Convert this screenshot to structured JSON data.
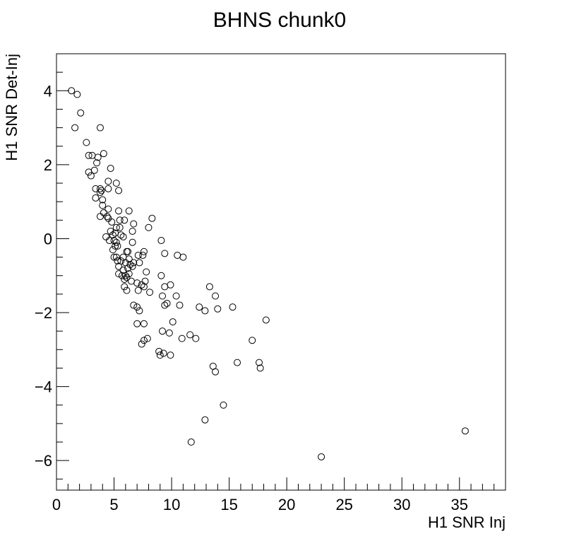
{
  "chart_data": {
    "type": "scatter",
    "title": "BHNS chunk0",
    "xlabel": "H1 SNR Inj",
    "ylabel": "H1 SNR Det-Inj",
    "xlim": [
      0,
      39
    ],
    "ylim": [
      -6.8,
      5.0
    ],
    "x_ticks": [
      0,
      5,
      10,
      15,
      20,
      25,
      30,
      35
    ],
    "y_ticks": [
      -6,
      -4,
      -2,
      0,
      2,
      4
    ],
    "x_tick_labels": [
      "0",
      "5",
      "10",
      "15",
      "20",
      "25",
      "30",
      "35"
    ],
    "y_tick_labels": [
      "−6",
      "−4",
      "−2",
      "0",
      "2",
      "4"
    ],
    "grid": false,
    "marker": "open-circle",
    "colors": {
      "marker": "#000000",
      "axis": "#000000",
      "background": "#ffffff"
    },
    "points": [
      [
        1.3,
        4.0
      ],
      [
        1.8,
        3.9
      ],
      [
        2.1,
        3.4
      ],
      [
        1.6,
        3.0
      ],
      [
        3.8,
        3.0
      ],
      [
        2.6,
        2.6
      ],
      [
        2.8,
        2.25
      ],
      [
        3.1,
        2.25
      ],
      [
        3.6,
        2.2
      ],
      [
        4.1,
        2.3
      ],
      [
        3.5,
        2.05
      ],
      [
        4.7,
        1.9
      ],
      [
        2.8,
        1.8
      ],
      [
        3.3,
        1.85
      ],
      [
        3.0,
        1.7
      ],
      [
        4.5,
        1.55
      ],
      [
        5.2,
        1.5
      ],
      [
        3.8,
        1.35
      ],
      [
        3.4,
        1.35
      ],
      [
        3.9,
        1.3
      ],
      [
        4.5,
        1.35
      ],
      [
        5.4,
        1.3
      ],
      [
        3.8,
        1.25
      ],
      [
        3.4,
        1.1
      ],
      [
        4.0,
        1.05
      ],
      [
        4.0,
        0.9
      ],
      [
        4.5,
        0.8
      ],
      [
        4.1,
        0.7
      ],
      [
        3.8,
        0.6
      ],
      [
        4.4,
        0.6
      ],
      [
        5.4,
        0.75
      ],
      [
        6.3,
        0.75
      ],
      [
        4.5,
        0.55
      ],
      [
        5.5,
        0.5
      ],
      [
        5.9,
        0.5
      ],
      [
        8.3,
        0.55
      ],
      [
        4.8,
        0.45
      ],
      [
        6.7,
        0.4
      ],
      [
        5.2,
        0.3
      ],
      [
        5.5,
        0.3
      ],
      [
        8.0,
        0.3
      ],
      [
        4.7,
        0.2
      ],
      [
        5.1,
        0.15
      ],
      [
        6.6,
        0.2
      ],
      [
        4.3,
        0.05
      ],
      [
        4.9,
        0.1
      ],
      [
        5.6,
        0.1
      ],
      [
        5.8,
        0.05
      ],
      [
        4.6,
        -0.05
      ],
      [
        5.0,
        -0.05
      ],
      [
        5.2,
        -0.1
      ],
      [
        6.6,
        -0.1
      ],
      [
        9.1,
        -0.05
      ],
      [
        5.1,
        -0.2
      ],
      [
        4.9,
        -0.3
      ],
      [
        5.3,
        -0.2
      ],
      [
        6.1,
        -0.35
      ],
      [
        6.2,
        -0.35
      ],
      [
        7.6,
        -0.35
      ],
      [
        9.4,
        -0.4
      ],
      [
        10.5,
        -0.45
      ],
      [
        7.1,
        -0.45
      ],
      [
        7.5,
        -0.45
      ],
      [
        5.0,
        -0.5
      ],
      [
        5.2,
        -0.5
      ],
      [
        5.8,
        -0.5
      ],
      [
        6.3,
        -0.55
      ],
      [
        11.0,
        -0.5
      ],
      [
        5.3,
        -0.6
      ],
      [
        5.6,
        -0.6
      ],
      [
        6.0,
        -0.65
      ],
      [
        6.4,
        -0.7
      ],
      [
        6.7,
        -0.65
      ],
      [
        7.2,
        -0.65
      ],
      [
        6.6,
        -0.75
      ],
      [
        5.4,
        -0.75
      ],
      [
        6.2,
        -0.8
      ],
      [
        5.8,
        -0.85
      ],
      [
        7.8,
        -0.9
      ],
      [
        5.4,
        -0.95
      ],
      [
        6.3,
        -0.95
      ],
      [
        5.7,
        -1.0
      ],
      [
        6.0,
        -1.0
      ],
      [
        9.1,
        -1.0
      ],
      [
        6.1,
        -1.05
      ],
      [
        5.9,
        -1.1
      ],
      [
        6.5,
        -1.15
      ],
      [
        7.7,
        -1.15
      ],
      [
        7.0,
        -1.2
      ],
      [
        7.4,
        -1.25
      ],
      [
        9.9,
        -1.25
      ],
      [
        7.6,
        -1.3
      ],
      [
        5.9,
        -1.3
      ],
      [
        9.4,
        -1.3
      ],
      [
        13.3,
        -1.3
      ],
      [
        6.1,
        -1.4
      ],
      [
        7.1,
        -1.4
      ],
      [
        8.1,
        -1.45
      ],
      [
        9.2,
        -1.55
      ],
      [
        10.4,
        -1.55
      ],
      [
        13.8,
        -1.55
      ],
      [
        9.6,
        -1.75
      ],
      [
        9.4,
        -1.8
      ],
      [
        6.7,
        -1.8
      ],
      [
        7.0,
        -1.85
      ],
      [
        10.7,
        -1.8
      ],
      [
        12.4,
        -1.85
      ],
      [
        12.9,
        -1.95
      ],
      [
        14.0,
        -1.9
      ],
      [
        15.3,
        -1.85
      ],
      [
        7.2,
        -1.95
      ],
      [
        10.1,
        -2.25
      ],
      [
        7.6,
        -2.3
      ],
      [
        7.0,
        -2.3
      ],
      [
        18.2,
        -2.2
      ],
      [
        9.2,
        -2.5
      ],
      [
        9.8,
        -2.55
      ],
      [
        11.6,
        -2.6
      ],
      [
        12.1,
        -2.7
      ],
      [
        7.6,
        -2.75
      ],
      [
        7.9,
        -2.7
      ],
      [
        10.9,
        -2.7
      ],
      [
        7.4,
        -2.85
      ],
      [
        17.0,
        -2.75
      ],
      [
        8.9,
        -3.05
      ],
      [
        9.3,
        -3.1
      ],
      [
        9.0,
        -3.15
      ],
      [
        9.9,
        -3.15
      ],
      [
        15.7,
        -3.35
      ],
      [
        17.6,
        -3.35
      ],
      [
        13.6,
        -3.45
      ],
      [
        17.7,
        -3.5
      ],
      [
        13.8,
        -3.6
      ],
      [
        14.5,
        -4.5
      ],
      [
        12.9,
        -4.9
      ],
      [
        11.7,
        -5.5
      ],
      [
        35.5,
        -5.2
      ],
      [
        23.0,
        -5.9
      ]
    ]
  }
}
